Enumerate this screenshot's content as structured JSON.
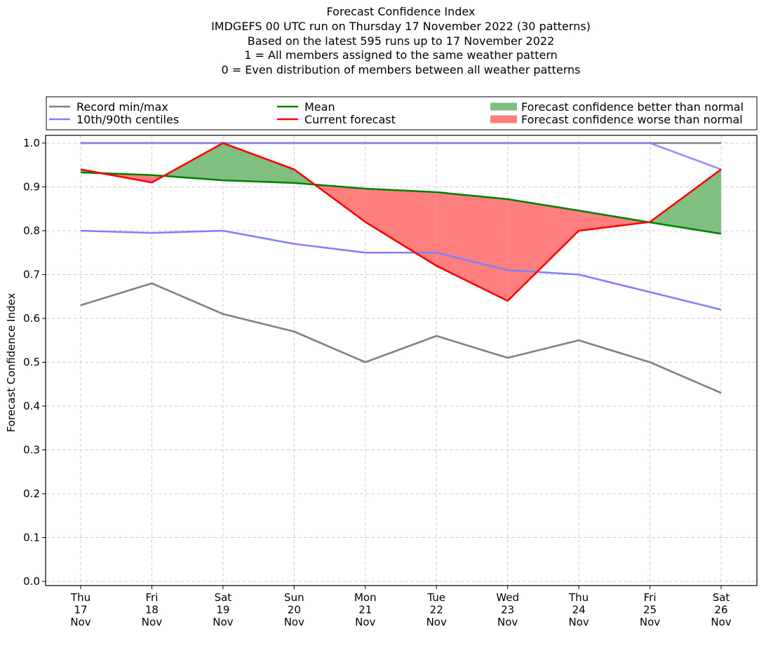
{
  "chart_data": {
    "type": "line",
    "title_lines": [
      "Forecast Confidence Index",
      "IMDGEFS 00 UTC run on Thursday 17 November 2022 (30 patterns)",
      "Based on the latest 595 runs up to 17 November 2022",
      "1 = All members assigned to the same weather pattern",
      "0 = Even distribution of members between all weather patterns"
    ],
    "xlabel": "",
    "ylabel": "Forecast Confidence Index",
    "ylim": [
      0.0,
      1.0
    ],
    "yticks": [
      "0.0",
      "0.1",
      "0.2",
      "0.3",
      "0.4",
      "0.5",
      "0.6",
      "0.7",
      "0.8",
      "0.9",
      "1.0"
    ],
    "grid": true,
    "legend_placement": "top, above plot",
    "categories": [
      {
        "day": "Thu",
        "date": "17",
        "month": "Nov"
      },
      {
        "day": "Fri",
        "date": "18",
        "month": "Nov"
      },
      {
        "day": "Sat",
        "date": "19",
        "month": "Nov"
      },
      {
        "day": "Sun",
        "date": "20",
        "month": "Nov"
      },
      {
        "day": "Mon",
        "date": "21",
        "month": "Nov"
      },
      {
        "day": "Tue",
        "date": "22",
        "month": "Nov"
      },
      {
        "day": "Wed",
        "date": "23",
        "month": "Nov"
      },
      {
        "day": "Thu",
        "date": "24",
        "month": "Nov"
      },
      {
        "day": "Fri",
        "date": "25",
        "month": "Nov"
      },
      {
        "day": "Sat",
        "date": "26",
        "month": "Nov"
      }
    ],
    "series": [
      {
        "name": "Record min",
        "legend": "Record min/max",
        "color": "#808080",
        "values": [
          0.63,
          0.68,
          0.61,
          0.57,
          0.5,
          0.56,
          0.51,
          0.55,
          0.5,
          0.43
        ]
      },
      {
        "name": "Record max",
        "legend": "Record min/max",
        "color": "#808080",
        "values": [
          1.0,
          1.0,
          1.0,
          1.0,
          1.0,
          1.0,
          1.0,
          1.0,
          1.0,
          1.0
        ]
      },
      {
        "name": "10th centile",
        "legend": "10th/90th centiles",
        "color": "#8080ff",
        "values": [
          0.8,
          0.795,
          0.8,
          0.77,
          0.75,
          0.75,
          0.71,
          0.7,
          0.66,
          0.62
        ]
      },
      {
        "name": "90th centile",
        "legend": "10th/90th centiles",
        "color": "#8080ff",
        "values": [
          1.0,
          1.0,
          1.0,
          1.0,
          1.0,
          1.0,
          1.0,
          1.0,
          1.0,
          0.94
        ]
      },
      {
        "name": "Mean",
        "legend": "Mean",
        "color": "#008000",
        "values": [
          0.933,
          0.927,
          0.915,
          0.909,
          0.896,
          0.888,
          0.872,
          0.846,
          0.819,
          0.793
        ]
      },
      {
        "name": "Current forecast",
        "legend": "Current forecast",
        "color": "#ff0000",
        "values": [
          0.94,
          0.91,
          1.0,
          0.94,
          0.82,
          0.72,
          0.64,
          0.8,
          0.82,
          0.94
        ]
      }
    ],
    "fills": [
      {
        "name": "Forecast confidence better than normal",
        "color": "#7fbf7f",
        "between": [
          "Current forecast",
          "Mean"
        ],
        "where": "current > mean"
      },
      {
        "name": "Forecast confidence worse than normal",
        "color": "#ff7f7f",
        "between": [
          "Current forecast",
          "Mean"
        ],
        "where": "current < mean"
      }
    ],
    "legend": [
      {
        "label": "Record min/max",
        "kind": "line",
        "color": "#808080"
      },
      {
        "label": "10th/90th centiles",
        "kind": "line",
        "color": "#8080ff"
      },
      {
        "label": "Mean",
        "kind": "line",
        "color": "#008000"
      },
      {
        "label": "Current forecast",
        "kind": "line",
        "color": "#ff0000"
      },
      {
        "label": "Forecast confidence better than normal",
        "kind": "patch",
        "color": "#7fbf7f"
      },
      {
        "label": "Forecast confidence worse than normal",
        "kind": "patch",
        "color": "#ff7f7f"
      }
    ]
  }
}
